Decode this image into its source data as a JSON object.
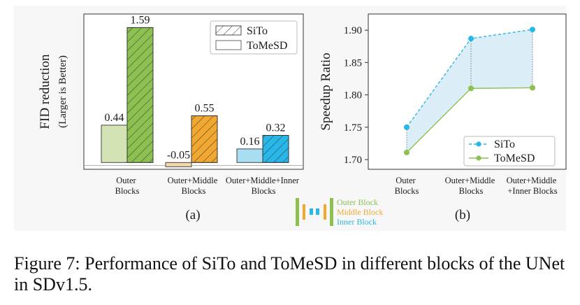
{
  "colors": {
    "outer": "#8cc152",
    "outer_light": "#d4e3b4",
    "middle": "#f0a830",
    "middle_light": "#f3d7a8",
    "inner": "#29b6e8",
    "inner_light": "#a8def2",
    "line_sito": "#29b6e8",
    "line_tomesd": "#8cc152",
    "fill_between": "#cfe7f3"
  },
  "chart_data": [
    {
      "id": "a",
      "type": "bar",
      "panel_label": "(a)",
      "ylabel": "FID reduction",
      "ylabel2": "(Larger is Better)",
      "categories": [
        "Outer\nBlocks",
        "Outer+Middle\nBlocks",
        "Outer+Middle+Inner\nBlocks"
      ],
      "series": [
        {
          "name": "ToMeSD",
          "values": [
            0.44,
            -0.05,
            0.16
          ]
        },
        {
          "name": "SiTo",
          "values": [
            1.59,
            0.55,
            0.32
          ]
        }
      ],
      "value_labels": {
        "ToMeSD": [
          "0.44",
          "-0.05",
          "0.16"
        ],
        "SiTo": [
          "1.59",
          "0.55",
          "0.32"
        ]
      },
      "legend": [
        "SiTo",
        "ToMeSD"
      ],
      "legend_position": "top-right",
      "ylim": [
        -0.08,
        1.75
      ]
    },
    {
      "id": "b",
      "type": "line",
      "panel_label": "(b)",
      "ylabel": "Speedup Ratio",
      "categories": [
        "Outer\nBlocks",
        "Outer+Middle\nBlocks",
        "Outer+Middle\n+Inner Blocks"
      ],
      "series": [
        {
          "name": "SiTo",
          "values": [
            1.75,
            1.887,
            1.901
          ]
        },
        {
          "name": "ToMeSD",
          "values": [
            1.711,
            1.81,
            1.811
          ]
        }
      ],
      "yticks": [
        "1.70",
        "1.75",
        "1.80",
        "1.85",
        "1.90"
      ],
      "ytick_values": [
        1.7,
        1.75,
        1.8,
        1.85,
        1.9
      ],
      "legend": [
        "SiTo",
        "ToMeSD"
      ],
      "legend_position": "bottom-right",
      "ylim": [
        1.685,
        1.925
      ]
    }
  ],
  "unet_legend": {
    "outer": "Outer Block",
    "middle": "Middle Block",
    "inner": "Inner Block"
  },
  "caption": "Figure 7: Performance of SiTo and ToMeSD in different blocks of the UNet in SDv1.5."
}
